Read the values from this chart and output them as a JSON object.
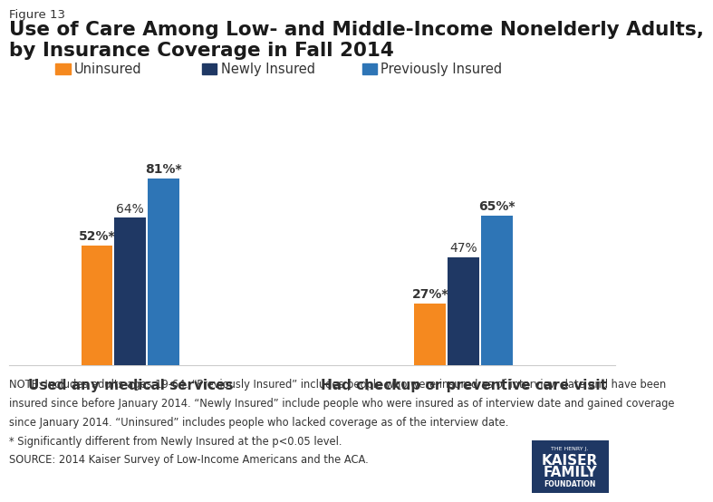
{
  "figure_label": "Figure 13",
  "title_line1": "Use of Care Among Low- and Middle-Income Nonelderly Adults,",
  "title_line2": "by Insurance Coverage in Fall 2014",
  "groups": [
    "Used any medical services",
    "Had checkup or preventive care visit"
  ],
  "series": [
    "Uninsured",
    "Newly Insured",
    "Previously Insured"
  ],
  "values": [
    [
      52,
      64,
      81
    ],
    [
      27,
      47,
      65
    ]
  ],
  "labels": [
    [
      "52%*",
      "64%",
      "81%*"
    ],
    [
      "27%*",
      "47%",
      "65%*"
    ]
  ],
  "colors": [
    "#F5891F",
    "#1F3864",
    "#2E75B6"
  ],
  "ylim": [
    0,
    95
  ],
  "note_lines": [
    "NOTE: Includes adults ages 19-64. “Previously Insured” includes people who were insured as of interview date and have been",
    "insured since before January 2014. “Newly Insured” include people who were insured as of interview date and gained coverage",
    "since January 2014. “Uninsured” includes people who lacked coverage as of the interview date.",
    "* Significantly different from Newly Insured at the p<0.05 level.",
    "SOURCE: 2014 Kaiser Survey of Low-Income Americans and the ACA."
  ],
  "legend_labels": [
    "Uninsured",
    "Newly Insured",
    "Previously Insured"
  ],
  "bg_color": "#FFFFFF",
  "bar_width": 0.22,
  "group_positions": [
    1.0,
    3.2
  ],
  "xlim": [
    0.2,
    4.2
  ]
}
